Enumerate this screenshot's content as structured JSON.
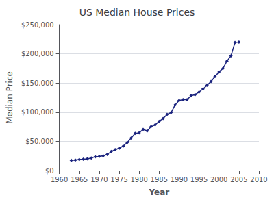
{
  "chart_data": {
    "type": "line",
    "title": "US Median House Prices",
    "xlabel": "Year",
    "ylabel": "Median Price",
    "x": [
      1963,
      1964,
      1965,
      1966,
      1967,
      1968,
      1969,
      1970,
      1971,
      1972,
      1973,
      1974,
      1975,
      1976,
      1977,
      1978,
      1979,
      1980,
      1981,
      1982,
      1983,
      1984,
      1985,
      1986,
      1987,
      1988,
      1989,
      1990,
      1991,
      1992,
      1993,
      1994,
      1995,
      1996,
      1997,
      1998,
      1999,
      2000,
      2001,
      2002,
      2003,
      2004,
      2005
    ],
    "values": [
      17200,
      18000,
      18900,
      19300,
      20000,
      21500,
      23600,
      24000,
      25200,
      27600,
      32500,
      35900,
      38100,
      41800,
      47900,
      55700,
      63700,
      64600,
      70500,
      67800,
      75300,
      78200,
      84300,
      89200,
      96300,
      99400,
      112500,
      120000,
      121500,
      121500,
      128200,
      130000,
      134400,
      140000,
      146000,
      152500,
      161000,
      169100,
      175100,
      187600,
      196500,
      219600,
      220000
    ],
    "color": "#1a237e",
    "marker": "diamond",
    "xlim": [
      1960,
      2010
    ],
    "ylim": [
      0,
      250000
    ],
    "xticks": [
      1960,
      1965,
      1970,
      1975,
      1980,
      1985,
      1990,
      1995,
      2000,
      2005,
      2010
    ],
    "yticks": [
      {
        "value": 0,
        "label": "$0"
      },
      {
        "value": 50000,
        "label": "$50,000"
      },
      {
        "value": 100000,
        "label": "$100,000"
      },
      {
        "value": 150000,
        "label": "$150,000"
      },
      {
        "value": 200000,
        "label": "$200,000"
      },
      {
        "value": 250000,
        "label": "$250,000"
      }
    ],
    "grid": "y"
  }
}
